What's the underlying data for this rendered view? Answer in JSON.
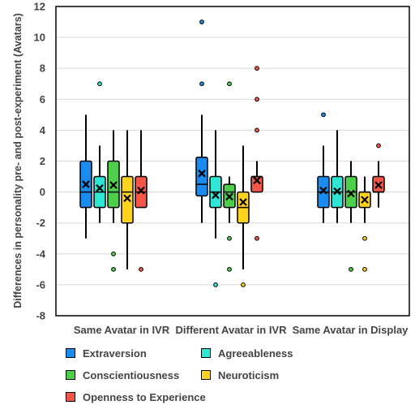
{
  "chart_data": {
    "type": "box",
    "ylabel": "Differences in personality pre- and post-experiment (Avatars)",
    "ylim": [
      -8,
      12
    ],
    "yticks": [
      -8,
      -6,
      -4,
      -2,
      0,
      2,
      4,
      6,
      8,
      10,
      12
    ],
    "grid": true,
    "legend_position": "bottom",
    "groups": [
      "Same Avatar in IVR",
      "Different Avatar in IVR",
      "Same Avatar in Display"
    ],
    "series": [
      {
        "name": "Extraversion",
        "color": "#1a8cf0",
        "boxes": [
          {
            "whisker_low": -3,
            "q1": -1,
            "median": 0,
            "q3": 2,
            "whisker_high": 5,
            "mean": 0.5,
            "outliers": []
          },
          {
            "whisker_low": -2,
            "q1": -0.25,
            "median": 0.5,
            "q3": 2.25,
            "whisker_high": 5,
            "mean": 1.2,
            "outliers": [
              11,
              7
            ]
          },
          {
            "whisker_low": -2,
            "q1": -1,
            "median": 0,
            "q3": 1,
            "whisker_high": 3,
            "mean": 0.1,
            "outliers": [
              5
            ]
          }
        ]
      },
      {
        "name": "Agreeableness",
        "color": "#2ee6d3",
        "boxes": [
          {
            "whisker_low": -2,
            "q1": -1,
            "median": 0,
            "q3": 1,
            "whisker_high": 3,
            "mean": 0.25,
            "outliers": [
              7
            ]
          },
          {
            "whisker_low": -3,
            "q1": -1,
            "median": 0,
            "q3": 1,
            "whisker_high": 4,
            "mean": -0.2,
            "outliers": [
              -6
            ]
          },
          {
            "whisker_low": -2,
            "q1": -1,
            "median": 0,
            "q3": 1,
            "whisker_high": 4,
            "mean": 0.05,
            "outliers": []
          }
        ]
      },
      {
        "name": "Conscientiousness",
        "color": "#4cd04c",
        "boxes": [
          {
            "whisker_low": -2,
            "q1": -1,
            "median": 0,
            "q3": 2,
            "whisker_high": 4,
            "mean": 0.45,
            "outliers": [
              -4,
              -5
            ]
          },
          {
            "whisker_low": -2,
            "q1": -1,
            "median": 0,
            "q3": 0.5,
            "whisker_high": 1,
            "mean": -0.3,
            "outliers": [
              7,
              -3,
              -5
            ]
          },
          {
            "whisker_low": -2,
            "q1": -1,
            "median": 0,
            "q3": 1,
            "whisker_high": 2,
            "mean": -0.1,
            "outliers": [
              -5
            ]
          }
        ]
      },
      {
        "name": "Neuroticism",
        "color": "#ffd21e",
        "boxes": [
          {
            "whisker_low": -5,
            "q1": -2,
            "median": 0,
            "q3": 1,
            "whisker_high": 4,
            "mean": -0.4,
            "outliers": []
          },
          {
            "whisker_low": -5,
            "q1": -2,
            "median": -1,
            "q3": 0,
            "whisker_high": 3,
            "mean": -0.65,
            "outliers": [
              -6
            ]
          },
          {
            "whisker_low": -2,
            "q1": -1,
            "median": 0,
            "q3": 0,
            "whisker_high": 1,
            "mean": -0.5,
            "outliers": [
              -3,
              -5
            ]
          }
        ]
      },
      {
        "name": "Openness to Experience",
        "color": "#f4574a",
        "boxes": [
          {
            "whisker_low": -1,
            "q1": -1,
            "median": 0,
            "q3": 1,
            "whisker_high": 4,
            "mean": 0.1,
            "outliers": [
              -5
            ]
          },
          {
            "whisker_low": 0,
            "q1": 0,
            "median": 1,
            "q3": 1,
            "whisker_high": 2,
            "mean": 0.75,
            "outliers": [
              8,
              6,
              4,
              -3
            ]
          },
          {
            "whisker_low": -1,
            "q1": 0,
            "median": 0,
            "q3": 1,
            "whisker_high": 2,
            "mean": 0.45,
            "outliers": [
              3
            ]
          }
        ]
      }
    ]
  }
}
